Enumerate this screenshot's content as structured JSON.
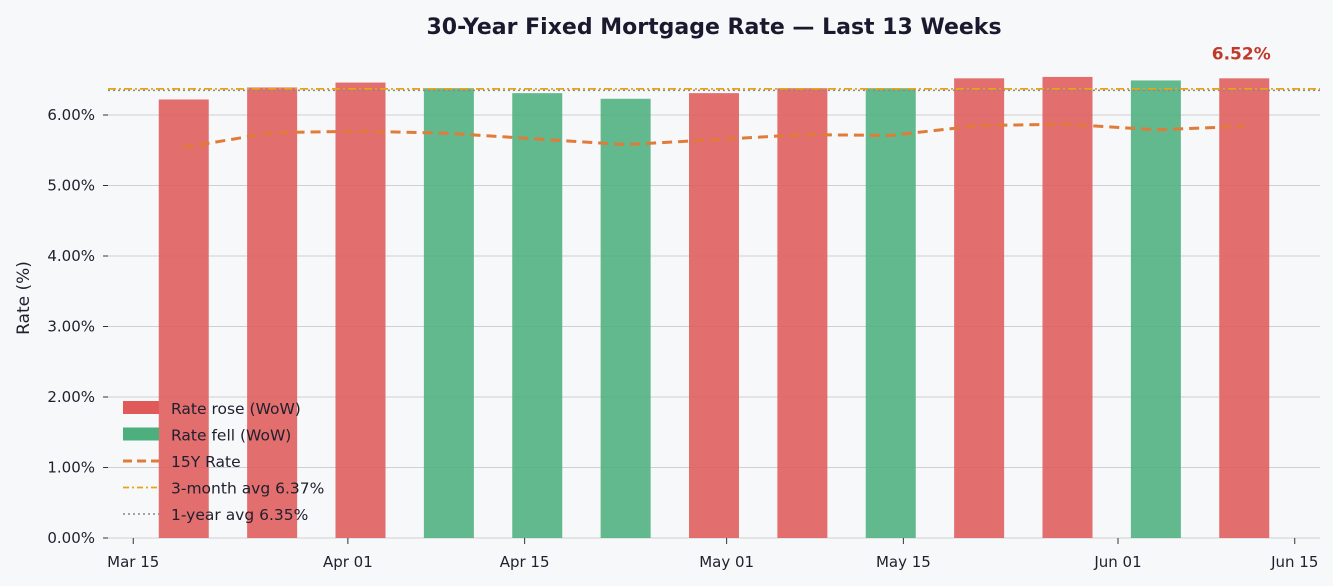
{
  "chart_data": {
    "type": "bar",
    "title": "30-Year Fixed Mortgage Rate — Last 13 Weeks",
    "xlabel": "",
    "ylabel": "Rate (%)",
    "x_ticks": [
      {
        "date": "2025-03-15",
        "label": "Mar 15"
      },
      {
        "date": "2025-04-01",
        "label": "Apr 01"
      },
      {
        "date": "2025-04-15",
        "label": "Apr 15"
      },
      {
        "date": "2025-05-01",
        "label": "May 01"
      },
      {
        "date": "2025-05-15",
        "label": "May 15"
      },
      {
        "date": "2025-06-01",
        "label": "Jun 01"
      },
      {
        "date": "2025-06-15",
        "label": "Jun 15"
      }
    ],
    "xlim": [
      "2025-03-13",
      "2025-06-17"
    ],
    "y_ticks": [
      "0.00%",
      "1.00%",
      "2.00%",
      "3.00%",
      "4.00%",
      "5.00%",
      "6.00%"
    ],
    "ylim": [
      0,
      6.78
    ],
    "grid": true,
    "legend_position": "lower-left",
    "colors": {
      "rose": "#e05a5a",
      "fell": "#4caf7d",
      "rate15": "#e07b39",
      "avg3m": "#e8a317",
      "avg1y": "#888888",
      "callout": "#c0392b"
    },
    "series": [
      {
        "name": "30Y Rate",
        "dates": [
          "2025-03-19",
          "2025-03-26",
          "2025-04-02",
          "2025-04-09",
          "2025-04-16",
          "2025-04-23",
          "2025-04-30",
          "2025-05-07",
          "2025-05-14",
          "2025-05-21",
          "2025-05-28",
          "2025-06-04",
          "2025-06-11"
        ],
        "values": [
          6.22,
          6.39,
          6.46,
          6.38,
          6.31,
          6.23,
          6.31,
          6.38,
          6.38,
          6.52,
          6.54,
          6.49,
          6.52
        ],
        "direction": [
          "rose",
          "rose",
          "rose",
          "fell",
          "fell",
          "fell",
          "rose",
          "rose",
          "fell",
          "rose",
          "rose",
          "fell",
          "rose"
        ]
      },
      {
        "name": "15Y Rate",
        "dates": [
          "2025-03-19",
          "2025-03-26",
          "2025-04-02",
          "2025-04-09",
          "2025-04-16",
          "2025-04-23",
          "2025-04-30",
          "2025-05-07",
          "2025-05-14",
          "2025-05-21",
          "2025-05-28",
          "2025-06-04",
          "2025-06-11"
        ],
        "values": [
          5.54,
          5.75,
          5.77,
          5.74,
          5.66,
          5.58,
          5.65,
          5.72,
          5.71,
          5.85,
          5.87,
          5.79,
          5.84
        ]
      }
    ],
    "reference_lines": [
      {
        "name": "3-month avg",
        "value": 6.37
      },
      {
        "name": "1-year avg",
        "value": 6.35
      }
    ],
    "legend": [
      {
        "key": "rose",
        "label": "Rate rose (WoW)",
        "style": "patch"
      },
      {
        "key": "fell",
        "label": "Rate fell (WoW)",
        "style": "patch"
      },
      {
        "key": "rate15",
        "label": "15Y Rate",
        "style": "dashed"
      },
      {
        "key": "avg3m",
        "label": "3-month avg  6.37%",
        "style": "dashdot"
      },
      {
        "key": "avg1y",
        "label": "1-year avg  6.35%",
        "style": "dotted"
      }
    ],
    "annotations": [
      {
        "text": "6.52%",
        "date": "2025-06-11",
        "value": 6.52
      }
    ]
  }
}
